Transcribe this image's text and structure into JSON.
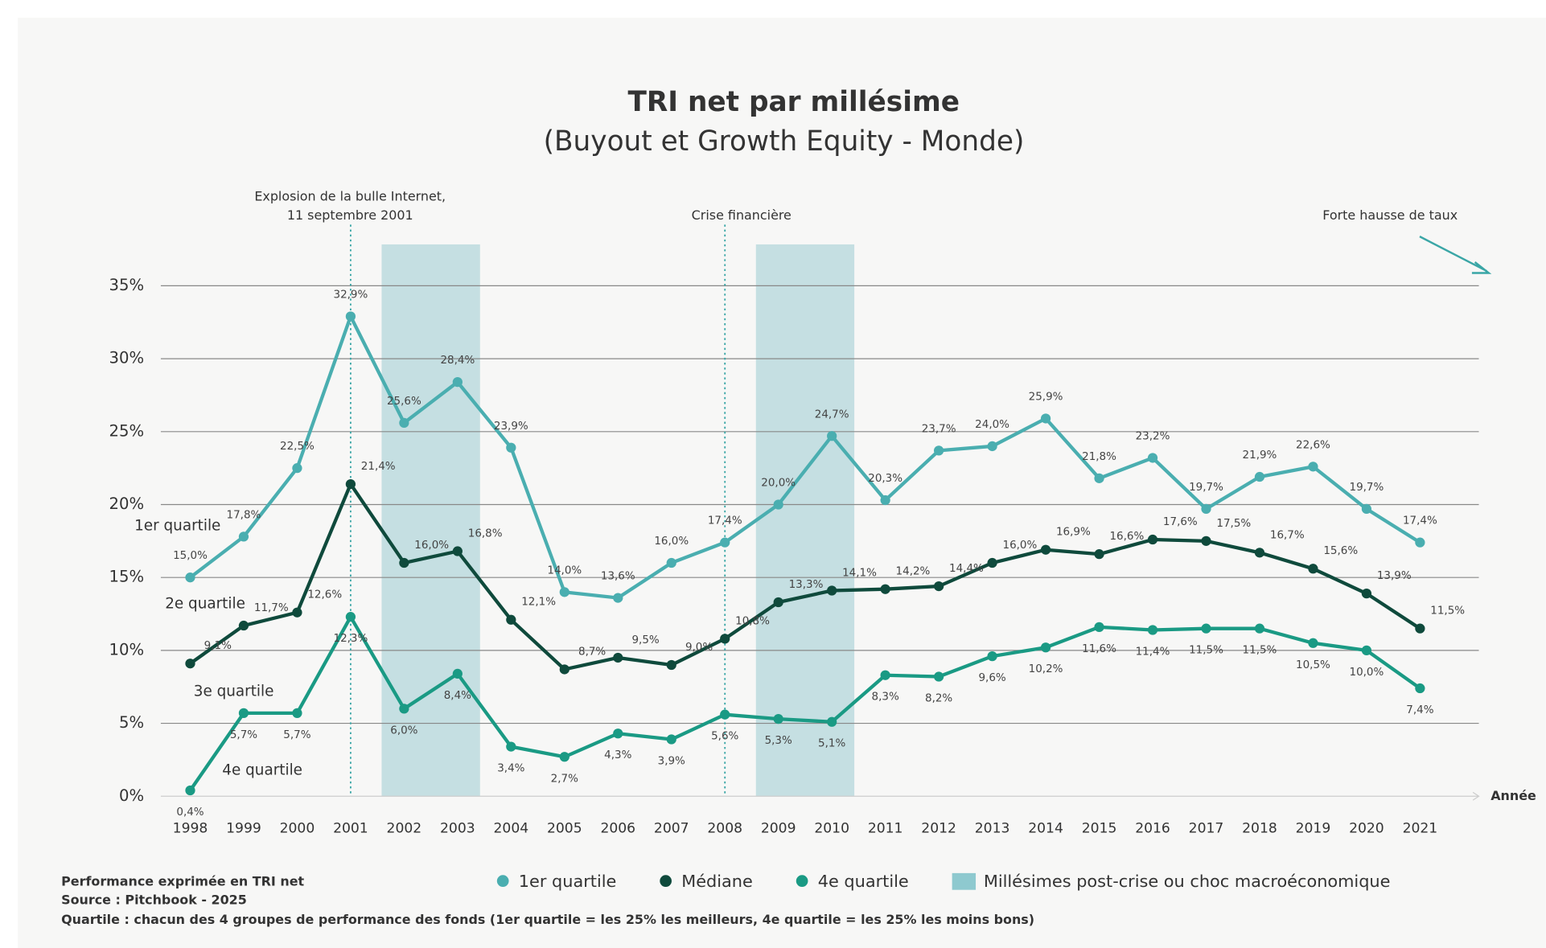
{
  "chart_data": {
    "type": "line",
    "title": "TRI net par millésime",
    "subtitle": "(Buyout et Growth Equity - Monde)",
    "x_label": "Année",
    "x": [
      1998,
      1999,
      2000,
      2001,
      2002,
      2003,
      2004,
      2005,
      2006,
      2007,
      2008,
      2009,
      2010,
      2011,
      2012,
      2013,
      2014,
      2015,
      2016,
      2017,
      2018,
      2019,
      2020,
      2021
    ],
    "xlim": [
      1997.45,
      2022.1
    ],
    "ylim": [
      0,
      35
    ],
    "yticks": [
      {
        "value": 0,
        "label": "0%"
      },
      {
        "value": 5,
        "label": "5%"
      },
      {
        "value": 10,
        "label": "10%"
      },
      {
        "value": 15,
        "label": "15%"
      },
      {
        "value": 20,
        "label": "20%"
      },
      {
        "value": 25,
        "label": "25%"
      },
      {
        "value": 30,
        "label": "30%"
      },
      {
        "value": 35,
        "label": "35%"
      }
    ],
    "grid": true,
    "series": [
      {
        "name": "1er quartile",
        "color": "#4aaeb0",
        "values": [
          15.0,
          17.8,
          22.5,
          32.9,
          25.6,
          28.4,
          23.9,
          14.0,
          13.6,
          16.0,
          17.4,
          20.0,
          24.7,
          20.3,
          23.7,
          24.0,
          25.9,
          21.8,
          23.2,
          19.7,
          21.9,
          22.6,
          19.7,
          17.4
        ],
        "value_labels": [
          "15,0%",
          "17,8%",
          "22,5%",
          "32,9%",
          "25,6%",
          "28,4%",
          "23,9%",
          "14,0%",
          "13,6%",
          "16,0%",
          "17,4%",
          "20,0%",
          "24,7%",
          "20,3%",
          "23,7%",
          "24,0%",
          "25,9%",
          "21,8%",
          "23,2%",
          "19,7%",
          "21,9%",
          "22,6%",
          "19,7%",
          "17,4%"
        ]
      },
      {
        "name": "Médiane",
        "color": "#0f4a3c",
        "values": [
          9.1,
          11.7,
          12.6,
          21.4,
          16.0,
          16.8,
          12.1,
          8.7,
          9.5,
          9.0,
          10.8,
          13.3,
          14.1,
          14.2,
          14.4,
          16.0,
          16.9,
          16.6,
          17.6,
          17.5,
          16.7,
          15.6,
          13.9,
          11.5
        ],
        "value_labels": [
          "9,1%",
          "11,7%",
          "12,6%",
          "21,4%",
          "16,0%",
          "16,8%",
          "12,1%",
          "8,7%",
          "9,5%",
          "9,0%",
          "10,8%",
          "13,3%",
          "14,1%",
          "14,2%",
          "14,4%",
          "16,0%",
          "16,9%",
          "16,6%",
          "17,6%",
          "17,5%",
          "16,7%",
          "15,6%",
          "13,9%",
          "11,5%"
        ]
      },
      {
        "name": "4e quartile",
        "color": "#1a9a84",
        "values": [
          0.4,
          5.7,
          5.7,
          12.3,
          6.0,
          8.4,
          3.4,
          2.7,
          4.3,
          3.9,
          5.6,
          5.3,
          5.1,
          8.3,
          8.2,
          9.6,
          10.2,
          11.6,
          11.4,
          11.5,
          11.5,
          10.5,
          10.0,
          7.4
        ],
        "value_labels": [
          "0,4%",
          "5,7%",
          "5,7%",
          "12,3%",
          "6,0%",
          "8,4%",
          "3,4%",
          "2,7%",
          "4,3%",
          "3,9%",
          "5,6%",
          "5,3%",
          "5,1%",
          "8,3%",
          "8,2%",
          "9,6%",
          "10,2%",
          "11,6%",
          "11,4%",
          "11,5%",
          "11,5%",
          "10,5%",
          "10,0%",
          "7,4%"
        ]
      }
    ],
    "line_labels": [
      "1er quartile",
      "2e quartile",
      "3e quartile",
      "4e quartile"
    ],
    "highlight_name": "Millésimes post-crise ou choc macroéconomique",
    "highlight_color": "#c5dfe2",
    "highlight_periods": [
      [
        2002,
        2003
      ],
      [
        2009,
        2010
      ]
    ],
    "event_lines": [
      2001,
      2008
    ],
    "annotations": [
      "Explosion de la bulle Internet,",
      "11 septembre 2001",
      "Crise financière",
      "Forte hausse de taux"
    ],
    "footnotes": [
      "Performance exprimée en TRI net",
      "Source : Pitchbook - 2025",
      "Quartile : chacun des 4 groupes de performance des fonds (1er quartile = les 25% les meilleurs, 4e quartile = les 25% les moins bons)"
    ]
  }
}
